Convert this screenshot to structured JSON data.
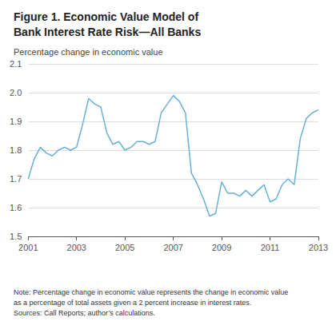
{
  "chart_data": {
    "type": "line",
    "title": "Figure 1. Economic Value Model of\nBank Interest Rate Risk—All Banks",
    "ylabel": "Percentage change in economic value",
    "annotations": [
      "Note: Percentage change in economic value represents the change in economic value\nas a percentage of total assets given a 2 percent increase in interest rates.\nSources: Call Reports; author’s calculations."
    ],
    "color": "#6aafd6",
    "grid": true,
    "ylim": [
      1.5,
      2.1
    ],
    "yticks": [
      1.5,
      1.6,
      1.7,
      1.8,
      1.9,
      {
        "value": 2.0,
        "label": "2.0"
      },
      2.1
    ],
    "xlim": [
      2001,
      2013
    ],
    "xticks": [
      2001,
      2003,
      2005,
      2007,
      2009,
      2011,
      2013
    ],
    "x": [
      2001.0,
      2001.25,
      2001.5,
      2001.75,
      2002.0,
      2002.25,
      2002.5,
      2002.75,
      2003.0,
      2003.25,
      2003.5,
      2003.75,
      2004.0,
      2004.25,
      2004.5,
      2004.75,
      2005.0,
      2005.25,
      2005.5,
      2005.75,
      2006.0,
      2006.25,
      2006.5,
      2006.75,
      2007.0,
      2007.25,
      2007.5,
      2007.75,
      2008.0,
      2008.25,
      2008.5,
      2008.75,
      2009.0,
      2009.25,
      2009.5,
      2009.75,
      2010.0,
      2010.25,
      2010.5,
      2010.75,
      2011.0,
      2011.25,
      2011.5,
      2011.75,
      2012.0,
      2012.25,
      2012.5,
      2012.75,
      2013.0
    ],
    "values": [
      1.7,
      1.77,
      1.81,
      1.79,
      1.78,
      1.8,
      1.81,
      1.8,
      1.81,
      1.89,
      1.98,
      1.96,
      1.95,
      1.86,
      1.82,
      1.83,
      1.8,
      1.81,
      1.83,
      1.83,
      1.82,
      1.83,
      1.93,
      1.96,
      1.99,
      1.97,
      1.93,
      1.72,
      1.68,
      1.63,
      1.57,
      1.58,
      1.69,
      1.65,
      1.65,
      1.64,
      1.66,
      1.64,
      1.66,
      1.68,
      1.62,
      1.63,
      1.68,
      1.7,
      1.68,
      1.84,
      1.91,
      1.93,
      1.94
    ]
  }
}
